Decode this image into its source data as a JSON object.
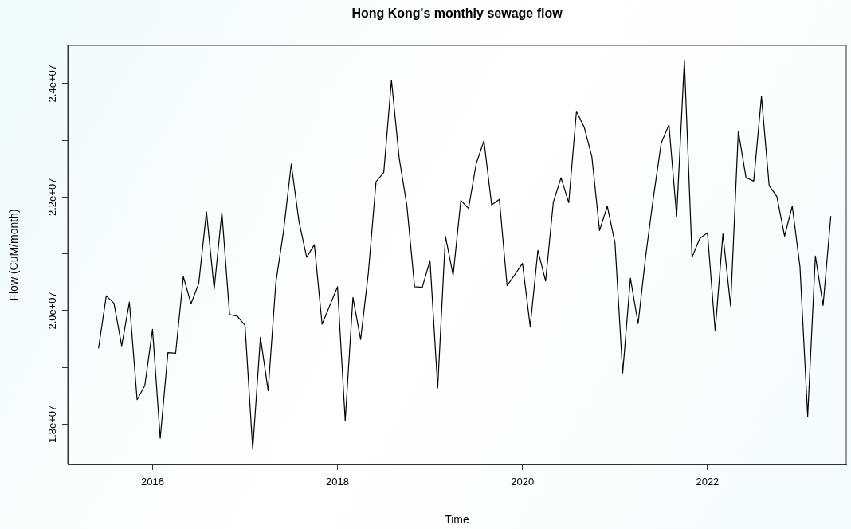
{
  "chart_data": {
    "type": "line",
    "title": "Hong Kong's monthly sewage flow",
    "xlabel": "Time",
    "ylabel": "Flow (CuM/month)",
    "x": [
      "2015-06",
      "2015-07",
      "2015-08",
      "2015-09",
      "2015-10",
      "2015-11",
      "2015-12",
      "2016-01",
      "2016-02",
      "2016-03",
      "2016-04",
      "2016-05",
      "2016-06",
      "2016-07",
      "2016-08",
      "2016-09",
      "2016-10",
      "2016-11",
      "2016-12",
      "2017-01",
      "2017-02",
      "2017-03",
      "2017-04",
      "2017-05",
      "2017-06",
      "2017-07",
      "2017-08",
      "2017-09",
      "2017-10",
      "2017-11",
      "2017-12",
      "2018-01",
      "2018-02",
      "2018-03",
      "2018-04",
      "2018-05",
      "2018-06",
      "2018-07",
      "2018-08",
      "2018-09",
      "2018-10",
      "2018-11",
      "2018-12",
      "2019-01",
      "2019-02",
      "2019-03",
      "2019-04",
      "2019-05",
      "2019-06",
      "2019-07",
      "2019-08",
      "2019-09",
      "2019-10",
      "2019-11",
      "2019-12",
      "2020-01",
      "2020-02",
      "2020-03",
      "2020-04",
      "2020-05",
      "2020-06",
      "2020-07",
      "2020-08",
      "2020-09",
      "2020-10",
      "2020-11",
      "2020-12",
      "2021-01",
      "2021-02",
      "2021-03",
      "2021-04",
      "2021-05",
      "2021-06",
      "2021-07",
      "2021-08",
      "2021-09",
      "2021-10",
      "2021-11",
      "2021-12",
      "2022-01",
      "2022-02",
      "2022-03",
      "2022-04",
      "2022-05",
      "2022-06",
      "2022-07",
      "2022-08",
      "2022-09",
      "2022-10",
      "2022-11",
      "2022-12",
      "2023-01",
      "2023-02",
      "2023-03",
      "2023-04",
      "2023-05"
    ],
    "series": [
      {
        "color": "#000000",
        "values": [
          19340000,
          20260000,
          20130000,
          19380000,
          20150000,
          18430000,
          18680000,
          19670000,
          17750000,
          19260000,
          19250000,
          20600000,
          20120000,
          20480000,
          21740000,
          20380000,
          21730000,
          19930000,
          19900000,
          19740000,
          17560000,
          19530000,
          18590000,
          20490000,
          21400000,
          22580000,
          21570000,
          20940000,
          21160000,
          19760000,
          20090000,
          20420000,
          18060000,
          20230000,
          19490000,
          20660000,
          22270000,
          22430000,
          24060000,
          22690000,
          21850000,
          20420000,
          20410000,
          20880000,
          18640000,
          21310000,
          20620000,
          21940000,
          21800000,
          22590000,
          22990000,
          21860000,
          21960000,
          20440000,
          20630000,
          20830000,
          19720000,
          21060000,
          20520000,
          21910000,
          22340000,
          21900000,
          23510000,
          23230000,
          22710000,
          21410000,
          21840000,
          21190000,
          18900000,
          20570000,
          19770000,
          20980000,
          22010000,
          22950000,
          23270000,
          21660000,
          24410000,
          20940000,
          21270000,
          21370000,
          19640000,
          21350000,
          20080000,
          23160000,
          22340000,
          22280000,
          23770000,
          22200000,
          22010000,
          21310000,
          21840000,
          20770000,
          18140000,
          20960000,
          20090000,
          21660000
        ]
      }
    ],
    "xlim": [
      "2015-02",
      "2023-07"
    ],
    "xticks": [
      {
        "value": "2016-01",
        "label": "2016"
      },
      {
        "value": "2018-01",
        "label": "2018"
      },
      {
        "value": "2020-01",
        "label": "2020"
      },
      {
        "value": "2022-01",
        "label": "2022"
      }
    ],
    "ylim": [
      17290000,
      24670000
    ],
    "yticks": [
      {
        "value": 18000000,
        "label": "1.8e+07"
      },
      {
        "value": 19000000,
        "label": null
      },
      {
        "value": 20000000,
        "label": "2.0e+07"
      },
      {
        "value": 21000000,
        "label": null
      },
      {
        "value": 22000000,
        "label": "2.2e+07"
      },
      {
        "value": 23000000,
        "label": null
      },
      {
        "value": 24000000,
        "label": "2.4e+07"
      }
    ],
    "grid": false,
    "legend": false,
    "marker": "none",
    "line_style": "solid"
  }
}
